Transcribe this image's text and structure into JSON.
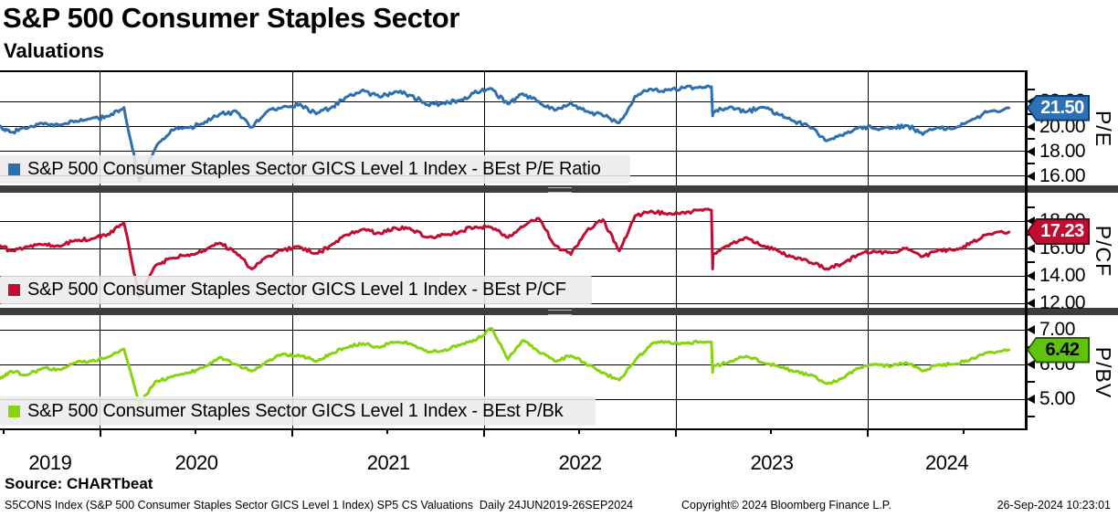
{
  "header": {
    "title": "S&P 500 Consumer Staples Sector",
    "subtitle": "Valuations"
  },
  "source_line": "Source: CHARTbeat",
  "footer": {
    "left": "S5CONS Index (S&P 500 Consumer Staples Sector GICS Level 1 Index) SP5 CS Valuations  Daily 24JUN2019-26SEP2024",
    "center": "Copyright© 2024 Bloomberg Finance L.P.",
    "right": "26-Sep-2024 10:23:01"
  },
  "chart_data": {
    "type": "line",
    "title": "S&P 500 Consumer Staples Sector Valuations",
    "x_range": [
      "24JUN2019",
      "26SEP2024"
    ],
    "x_year_ticks": [
      "2019",
      "2020",
      "2021",
      "2022",
      "2023",
      "2024"
    ],
    "x_months": [
      "2019-06",
      "2019-07",
      "2019-08",
      "2019-09",
      "2019-10",
      "2019-11",
      "2019-12",
      "2020-01",
      "2020-02",
      "2020-03",
      "2020-04",
      "2020-05",
      "2020-06",
      "2020-07",
      "2020-08",
      "2020-09",
      "2020-10",
      "2020-11",
      "2020-12",
      "2021-01",
      "2021-02",
      "2021-03",
      "2021-04",
      "2021-05",
      "2021-06",
      "2021-07",
      "2021-08",
      "2021-09",
      "2021-10",
      "2021-11",
      "2021-12",
      "2022-01",
      "2022-02",
      "2022-03",
      "2022-04",
      "2022-05",
      "2022-06",
      "2022-07",
      "2022-08",
      "2022-09",
      "2022-10",
      "2022-11",
      "2022-12",
      "2023-01",
      "2023-02",
      "2023-03",
      "2023-04",
      "2023-05",
      "2023-06",
      "2023-07",
      "2023-08",
      "2023-09",
      "2023-10",
      "2023-11",
      "2023-12",
      "2024-01",
      "2024-02",
      "2024-03",
      "2024-04",
      "2024-05",
      "2024-06",
      "2024-07",
      "2024-08",
      "2024-09"
    ],
    "panels": [
      {
        "name": "pe",
        "legend": "S&P 500 Consumer Staples Sector GICS Level 1 Index - BEst P/E Ratio",
        "axis_title": "P/E",
        "line_color": "#2e6fae",
        "legend_bg": "#ececeb",
        "ylim": [
          15.3,
          24.4
        ],
        "yticks": [
          {
            "v": 22,
            "label": "22.00"
          },
          {
            "v": 20,
            "label": "20.00"
          },
          {
            "v": 18,
            "label": "18.00"
          },
          {
            "v": 16,
            "label": "16.00"
          }
        ],
        "yticks_minor": [
          23,
          21,
          19,
          17
        ],
        "last_value": 21.5,
        "badge": {
          "label": "21.50",
          "bg": "#2c70b7",
          "border": "#143a66",
          "text_color": "#ffffff"
        },
        "jump_after": "2023-02",
        "jump_overshoot": 0.35,
        "values": [
          20.0,
          19.5,
          19.9,
          20.2,
          20.1,
          20.4,
          20.6,
          20.8,
          21.5,
          15.6,
          18.3,
          19.7,
          19.9,
          20.2,
          21.0,
          21.2,
          19.9,
          21.3,
          21.6,
          21.8,
          21.0,
          21.5,
          22.4,
          22.9,
          22.4,
          22.8,
          22.5,
          21.7,
          21.9,
          22.1,
          22.8,
          23.0,
          21.8,
          22.6,
          22.0,
          21.3,
          21.9,
          21.2,
          20.9,
          20.3,
          22.4,
          23.0,
          22.9,
          23.1,
          23.2,
          21.2,
          21.6,
          21.2,
          21.5,
          21.0,
          20.4,
          19.9,
          18.8,
          19.3,
          19.9,
          19.9,
          19.8,
          20.1,
          19.4,
          19.9,
          19.9,
          20.5,
          21.2,
          21.5
        ]
      },
      {
        "name": "pcf",
        "legend": "S&P 500 Consumer Staples Sector GICS Level 1 Index - BEst P/CF",
        "axis_title": "P/CF",
        "line_color": "#c00d31",
        "legend_bg": "#ececeb",
        "ylim": [
          11.7,
          20.0
        ],
        "yticks": [
          {
            "v": 18,
            "label": "18.00"
          },
          {
            "v": 16,
            "label": "16.00"
          },
          {
            "v": 14,
            "label": "14.00"
          },
          {
            "v": 12,
            "label": "12.00"
          }
        ],
        "yticks_minor": [
          19,
          17,
          15,
          13
        ],
        "last_value": 17.23,
        "badge": {
          "label": "17.23",
          "bg": "#c00c31",
          "border": "#5f0517",
          "text_color": "#ffffff"
        },
        "jump_after": "2023-02",
        "jump_overshoot": 1.1,
        "values": [
          16.2,
          15.8,
          16.1,
          16.3,
          16.2,
          16.6,
          16.7,
          17.0,
          17.9,
          12.5,
          14.8,
          15.3,
          15.5,
          15.8,
          16.4,
          15.7,
          14.5,
          15.4,
          15.9,
          16.1,
          15.6,
          16.2,
          17.0,
          17.4,
          17.1,
          17.5,
          17.4,
          16.8,
          17.0,
          17.2,
          17.6,
          17.5,
          16.8,
          17.6,
          18.2,
          16.2,
          15.6,
          17.3,
          18.1,
          15.8,
          18.4,
          18.7,
          18.5,
          18.6,
          18.8,
          15.6,
          16.3,
          16.8,
          16.2,
          15.8,
          15.3,
          15.0,
          14.5,
          14.9,
          15.6,
          15.8,
          15.7,
          16.0,
          15.4,
          15.9,
          15.9,
          16.4,
          17.0,
          17.2
        ]
      },
      {
        "name": "pbk",
        "legend": "S&P 500 Consumer Staples Sector GICS Level 1 Index - BEst P/Bk",
        "axis_title": "P/BV",
        "line_color": "#86d30e",
        "legend_bg": "#ececeb",
        "ylim": [
          4.1,
          7.4
        ],
        "yticks": [
          {
            "v": 7,
            "label": "7.00"
          },
          {
            "v": 6,
            "label": "6.00"
          },
          {
            "v": 5,
            "label": "5.00"
          }
        ],
        "yticks_minor": [
          6.5,
          5.5,
          4.5
        ],
        "last_value": 6.42,
        "badge": {
          "label": "6.42",
          "bg": "#5fc30e",
          "border": "#2c5a03",
          "text_color": "#000000"
        },
        "jump_after": "2023-02",
        "jump_overshoot": 0.18,
        "values": [
          5.6,
          5.8,
          5.7,
          5.9,
          5.85,
          6.05,
          6.1,
          6.2,
          6.45,
          4.85,
          5.5,
          5.65,
          5.75,
          5.9,
          6.2,
          6.0,
          5.8,
          6.1,
          6.3,
          6.25,
          6.1,
          6.3,
          6.5,
          6.6,
          6.5,
          6.65,
          6.6,
          6.35,
          6.4,
          6.55,
          6.7,
          7.05,
          6.15,
          6.7,
          6.35,
          6.1,
          6.25,
          6.0,
          5.75,
          5.55,
          6.1,
          6.6,
          6.65,
          6.6,
          6.65,
          5.95,
          6.1,
          6.25,
          6.05,
          5.95,
          5.8,
          5.7,
          5.45,
          5.6,
          5.9,
          6.0,
          5.95,
          6.05,
          5.8,
          6.0,
          6.0,
          6.15,
          6.35,
          6.42
        ]
      }
    ]
  }
}
